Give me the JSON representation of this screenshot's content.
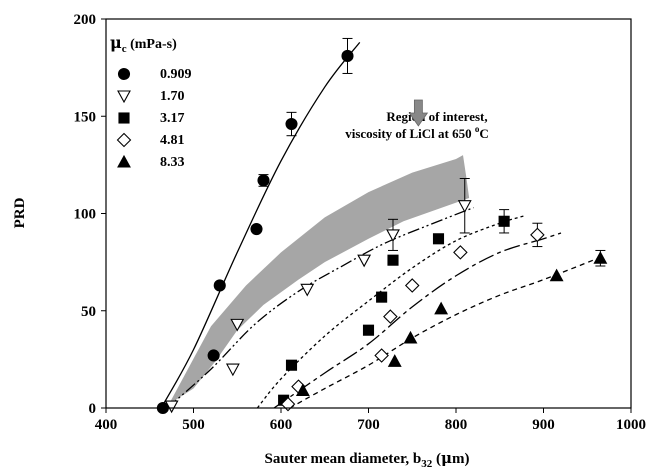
{
  "chart_data": {
    "type": "scatter",
    "xlabel": "Sauter mean diameter, b32 (μm)",
    "xlabel_parts": [
      "Sauter mean diameter, b",
      "32",
      " (",
      "μ",
      "m)"
    ],
    "ylabel": "PRD",
    "xlim": [
      400,
      1000
    ],
    "ylim": [
      0,
      200
    ],
    "xticks": [
      400,
      500,
      600,
      700,
      800,
      900,
      1000
    ],
    "yticks": [
      0,
      50,
      100,
      150,
      200
    ],
    "grid": false,
    "legend_position": "top-left",
    "legend_title": "μc (mPa-s)",
    "legend_title_parts": [
      "μ",
      "c",
      " (mPa-s)"
    ],
    "annotation": {
      "lines": [
        "Region of interest,",
        "viscosity of LiCl at 650 ",
        "o",
        "C"
      ],
      "text": "Region of interest, viscosity of LiCl at 650 oC",
      "arrow": {
        "x": 757,
        "y": 145
      }
    },
    "region": {
      "color": "#a6a6a6",
      "upper": [
        [
          472,
          2
        ],
        [
          520,
          42
        ],
        [
          560,
          63
        ],
        [
          600,
          80
        ],
        [
          650,
          98
        ],
        [
          700,
          111
        ],
        [
          750,
          121
        ],
        [
          800,
          128
        ],
        [
          808,
          130
        ],
        [
          812,
          118
        ],
        [
          815,
          108
        ]
      ],
      "lower": [
        [
          815,
          108
        ],
        [
          790,
          104
        ],
        [
          740,
          96
        ],
        [
          700,
          87
        ],
        [
          650,
          75
        ],
        [
          620,
          66
        ],
        [
          580,
          53
        ],
        [
          550,
          40
        ],
        [
          525,
          24
        ],
        [
          500,
          10
        ],
        [
          472,
          2
        ]
      ]
    },
    "series": [
      {
        "name": "0.909",
        "marker": "circle",
        "fill": true,
        "curve_style": "solid",
        "points": [
          [
            465,
            0
          ],
          [
            523,
            27
          ],
          [
            530,
            63
          ],
          [
            572,
            92
          ],
          [
            580,
            117
          ],
          [
            612,
            146
          ],
          [
            676,
            181
          ]
        ],
        "error": [
          null,
          null,
          null,
          null,
          3,
          6,
          9
        ],
        "curve": [
          [
            463,
            0
          ],
          [
            500,
            30
          ],
          [
            550,
            80
          ],
          [
            600,
            127
          ],
          [
            650,
            165
          ],
          [
            690,
            188
          ]
        ]
      },
      {
        "name": "1.70",
        "marker": "triangle-down",
        "fill": false,
        "curve_style": "dash-dot-dot",
        "points": [
          [
            475,
            1
          ],
          [
            545,
            20
          ],
          [
            550,
            43
          ],
          [
            630,
            61
          ],
          [
            695,
            76
          ],
          [
            728,
            89
          ],
          [
            810,
            104
          ]
        ],
        "error": [
          null,
          null,
          null,
          null,
          null,
          8,
          14
        ],
        "curve": [
          [
            470,
            0
          ],
          [
            520,
            20
          ],
          [
            570,
            43
          ],
          [
            620,
            60
          ],
          [
            670,
            73
          ],
          [
            720,
            85
          ],
          [
            780,
            96
          ],
          [
            820,
            103
          ]
        ]
      },
      {
        "name": "3.17",
        "marker": "square",
        "fill": true,
        "curve_style": "dotted",
        "points": [
          [
            603,
            4
          ],
          [
            612,
            22
          ],
          [
            700,
            40
          ],
          [
            715,
            57
          ],
          [
            728,
            76
          ],
          [
            780,
            87
          ],
          [
            855,
            96
          ]
        ],
        "error": [
          null,
          null,
          null,
          null,
          null,
          null,
          6
        ],
        "curve": [
          [
            573,
            0
          ],
          [
            600,
            15
          ],
          [
            650,
            37
          ],
          [
            700,
            55
          ],
          [
            750,
            72
          ],
          [
            800,
            86
          ],
          [
            850,
            95
          ],
          [
            880,
            99
          ]
        ]
      },
      {
        "name": "4.81",
        "marker": "diamond",
        "fill": false,
        "curve_style": "long-dash",
        "points": [
          [
            608,
            2
          ],
          [
            620,
            11
          ],
          [
            715,
            27
          ],
          [
            725,
            47
          ],
          [
            750,
            63
          ],
          [
            805,
            80
          ],
          [
            893,
            89
          ]
        ],
        "error": [
          null,
          null,
          null,
          null,
          null,
          null,
          6
        ],
        "curve": [
          [
            592,
            0
          ],
          [
            650,
            18
          ],
          [
            700,
            33
          ],
          [
            750,
            52
          ],
          [
            800,
            68
          ],
          [
            850,
            80
          ],
          [
            900,
            87
          ],
          [
            920,
            90
          ]
        ]
      },
      {
        "name": "8.33",
        "marker": "triangle-up",
        "fill": true,
        "curve_style": "dashed",
        "points": [
          [
            625,
            9
          ],
          [
            730,
            24
          ],
          [
            748,
            36
          ],
          [
            783,
            51
          ],
          [
            915,
            68
          ],
          [
            965,
            77
          ]
        ],
        "error": [
          null,
          null,
          null,
          null,
          null,
          4
        ],
        "curve": [
          [
            610,
            0
          ],
          [
            650,
            10
          ],
          [
            700,
            22
          ],
          [
            750,
            36
          ],
          [
            800,
            48
          ],
          [
            850,
            58
          ],
          [
            900,
            66
          ],
          [
            968,
            78
          ]
        ]
      }
    ]
  }
}
